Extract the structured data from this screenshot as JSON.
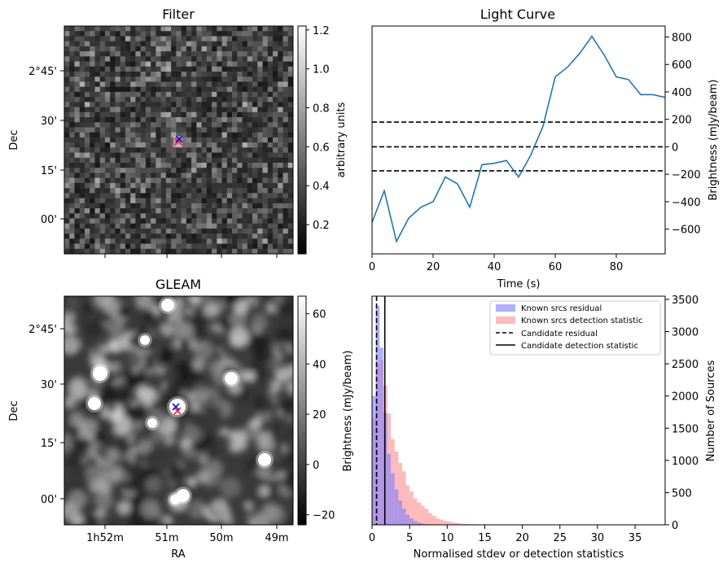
{
  "chart_data": [
    {
      "type": "heatmap",
      "title": "Filter",
      "xlabel": "",
      "ylabel": "Dec",
      "ytick_labels": [
        "2°45'",
        "30'",
        "15'",
        "00'"
      ],
      "colorbar": {
        "label": "arbitrary units",
        "range": [
          0.05,
          1.22
        ],
        "ticks": [
          0.2,
          0.4,
          0.6,
          0.8,
          1.0,
          1.2
        ],
        "tick_labels": [
          "0.2",
          "0.4",
          "0.6",
          "0.8",
          "1.0",
          "1.2"
        ]
      },
      "colormap": "gray",
      "markers": [
        {
          "symbol": "x",
          "color": "#ff2020"
        },
        {
          "symbol": "x",
          "color": "#1010e0"
        }
      ]
    },
    {
      "type": "line",
      "title": "Light Curve",
      "xlabel": "Time (s)",
      "ylabel": "Brightness (mJy/beam)",
      "xlim": [
        0,
        96
      ],
      "ylim": [
        -780,
        880
      ],
      "xticks": [
        0,
        20,
        40,
        60,
        80
      ],
      "yticks": [
        -600,
        -400,
        -200,
        0,
        200,
        400,
        600,
        800
      ],
      "line_color": "#1f77b4",
      "series": [
        {
          "x": [
            0,
            4,
            8,
            12,
            16,
            20,
            24,
            28,
            32,
            36,
            40,
            44,
            48,
            52,
            56,
            60,
            64,
            68,
            72,
            76,
            80,
            84,
            88,
            92,
            96
          ],
          "y": [
            -550,
            -320,
            -690,
            -520,
            -440,
            -400,
            -220,
            -270,
            -440,
            -130,
            -120,
            -100,
            -220,
            -60,
            150,
            510,
            580,
            680,
            805,
            670,
            510,
            490,
            380,
            380,
            360
          ]
        }
      ],
      "hlines": [
        {
          "y": 180,
          "style": "dashed",
          "color": "#000000"
        },
        {
          "y": 0,
          "style": "dashed",
          "color": "#000000"
        },
        {
          "y": -175,
          "style": "dashed",
          "color": "#000000"
        }
      ]
    },
    {
      "type": "heatmap",
      "title": "GLEAM",
      "xlabel": "RA",
      "ylabel": "Dec",
      "xtick_labels": [
        "1h52m",
        "51m",
        "50m",
        "49m"
      ],
      "ytick_labels": [
        "2°45'",
        "30'",
        "15'",
        "00'"
      ],
      "colorbar": {
        "label": "Brightness (mJy/beam)",
        "range": [
          -24,
          67
        ],
        "ticks": [
          -20,
          0,
          20,
          40,
          60
        ],
        "tick_labels": [
          "−20",
          "0",
          "20",
          "40",
          "60"
        ]
      },
      "colormap": "gray",
      "markers": [
        {
          "symbol": "x",
          "color": "#ff2020"
        },
        {
          "symbol": "x",
          "color": "#1010e0"
        }
      ]
    },
    {
      "type": "bar",
      "title": "",
      "xlabel": "Normalised stdev or detection statistics",
      "ylabel": "Number of Sources",
      "xlim": [
        0,
        39
      ],
      "ylim": [
        0,
        3550
      ],
      "xticks": [
        0,
        5,
        10,
        15,
        20,
        25,
        30,
        35
      ],
      "yticks": [
        0,
        500,
        1000,
        1500,
        2000,
        2500,
        3000,
        3500
      ],
      "bin_width": 0.5,
      "legend_position": "top-right",
      "series": [
        {
          "name": "Known srcs residual",
          "color": "#8080ff",
          "bin_start": 0,
          "values": [
            2000,
            3400,
            2750,
            1740,
            1100,
            800,
            550,
            380,
            250,
            160,
            100,
            60,
            35,
            20,
            10,
            5,
            2
          ]
        },
        {
          "name": "Known srcs detection statistic",
          "color": "#ff9090",
          "bin_start": 0,
          "values": [
            1650,
            2500,
            2560,
            2160,
            1730,
            1330,
            1140,
            960,
            830,
            610,
            520,
            410,
            345,
            300,
            250,
            180,
            140,
            100,
            80,
            60,
            50,
            40,
            30,
            22,
            15,
            12,
            10,
            8,
            6,
            5,
            4,
            3,
            3,
            2,
            2,
            2,
            1,
            1,
            1,
            1
          ]
        }
      ],
      "vlines": [
        {
          "name": "Candidate residual",
          "x": 0.6,
          "style": "dashed",
          "color": "#000000"
        },
        {
          "name": "Candidate detection statistic",
          "x": 1.7,
          "style": "solid",
          "color": "#000000"
        }
      ]
    }
  ]
}
